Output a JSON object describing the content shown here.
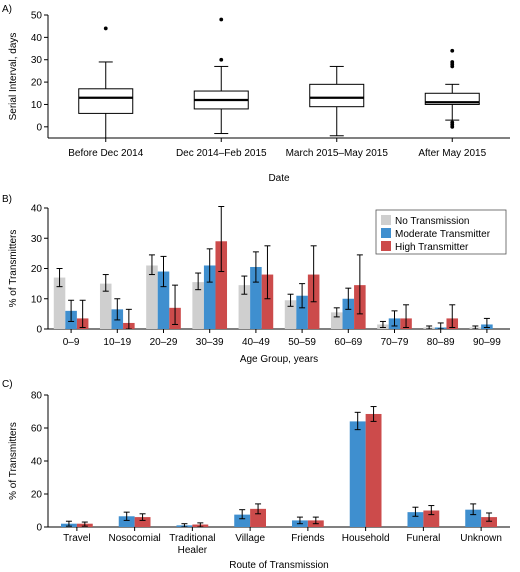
{
  "chart_data": [
    {
      "panel": "A)",
      "type": "box",
      "xlabel": "Date",
      "ylabel": "Serial Interval, days",
      "ylim": [
        -5,
        50
      ],
      "yticks": [
        0,
        10,
        20,
        30,
        40,
        50
      ],
      "categories": [
        "Before Dec 2014",
        "Dec 2014–Feb 2015",
        "March 2015–May 2015",
        "After May 2015"
      ],
      "boxes": [
        {
          "min": -5,
          "q1": 6,
          "median": 13,
          "q3": 17,
          "max": 29,
          "outliers": [
            44
          ]
        },
        {
          "min": -3,
          "q1": 8,
          "median": 12,
          "q3": 16,
          "max": 27,
          "outliers": [
            30,
            48
          ]
        },
        {
          "min": -4,
          "q1": 9,
          "median": 13,
          "q3": 19,
          "max": 27,
          "outliers": []
        },
        {
          "min": 3,
          "q1": 10,
          "median": 11,
          "q3": 15,
          "max": 19,
          "outliers": [
            0,
            1,
            2,
            27,
            28,
            29,
            34
          ]
        }
      ]
    },
    {
      "panel": "B)",
      "type": "bar",
      "xlabel": "Age Group, years",
      "ylabel": "% of Transmitters",
      "ylim": [
        0,
        40
      ],
      "yticks": [
        0,
        10,
        20,
        30,
        40
      ],
      "legend_position": "top-right",
      "categories": [
        "0–9",
        "10–19",
        "20–29",
        "30–39",
        "40–49",
        "50–59",
        "60–69",
        "70–79",
        "80–89",
        "90–99"
      ],
      "series": [
        {
          "name": "No Transmission",
          "color": "#cfcfcf",
          "values": [
            17,
            15,
            21,
            15.5,
            14.5,
            9.5,
            5.5,
            1.5,
            0.5,
            0.5
          ],
          "err_low": [
            14,
            12.5,
            18,
            13,
            11.5,
            7.5,
            4,
            0.5,
            0,
            0
          ],
          "err_high": [
            20,
            18,
            24.5,
            18.5,
            17.5,
            11.5,
            7,
            2.5,
            1,
            1
          ]
        },
        {
          "name": "Moderate Transmitter",
          "color": "#3f8fcf",
          "values": [
            6,
            6.5,
            19,
            21,
            20.5,
            11,
            10,
            3.5,
            0.5,
            1.5
          ],
          "err_low": [
            2.5,
            3,
            14,
            15.5,
            15.5,
            7,
            6.5,
            1,
            0,
            0.5
          ],
          "err_high": [
            9.5,
            10,
            24,
            26.5,
            25.5,
            15,
            13.5,
            6,
            2,
            3.5
          ]
        },
        {
          "name": "High Transmitter",
          "color": "#cc4b4b",
          "values": [
            3.5,
            2,
            7,
            29,
            18,
            18,
            14.5,
            3.5,
            3.5,
            0
          ],
          "err_low": [
            0.5,
            0,
            1.5,
            19,
            10,
            9,
            5,
            0.5,
            0.5,
            0
          ],
          "err_high": [
            9.5,
            6.5,
            14.5,
            40.5,
            27.5,
            27.5,
            24.5,
            8,
            8,
            0
          ]
        }
      ]
    },
    {
      "panel": "C)",
      "type": "bar",
      "xlabel": "Route of Transmission",
      "ylabel": "% of Transmitters",
      "ylim": [
        0,
        80
      ],
      "yticks": [
        0,
        20,
        40,
        60,
        80
      ],
      "categories": [
        "Travel",
        "Nosocomial",
        "Traditional Healer",
        "Village",
        "Friends",
        "Household",
        "Funeral",
        "Unknown"
      ],
      "category_lines": [
        [
          "Travel"
        ],
        [
          "Nosocomial"
        ],
        [
          "Traditional",
          "Healer"
        ],
        [
          "Village"
        ],
        [
          "Friends"
        ],
        [
          "Household"
        ],
        [
          "Funeral"
        ],
        [
          "Unknown"
        ]
      ],
      "series": [
        {
          "name": "Moderate Transmitter",
          "color": "#3f8fcf",
          "values": [
            2,
            6.5,
            1,
            7.5,
            4,
            64,
            9,
            10.5
          ],
          "err_low": [
            0.5,
            4,
            0,
            5,
            2,
            59,
            6.5,
            7.5
          ],
          "err_high": [
            3.5,
            9,
            2,
            10.5,
            6,
            69.5,
            12,
            14
          ]
        },
        {
          "name": "High Transmitter",
          "color": "#cc4b4b",
          "values": [
            2,
            6,
            1.5,
            11,
            4,
            68.5,
            10,
            6
          ],
          "err_low": [
            0.5,
            4,
            0,
            8,
            2,
            64,
            7.5,
            3.5
          ],
          "err_high": [
            3,
            8,
            2.5,
            14,
            6,
            73,
            13,
            8.5
          ]
        }
      ]
    }
  ]
}
